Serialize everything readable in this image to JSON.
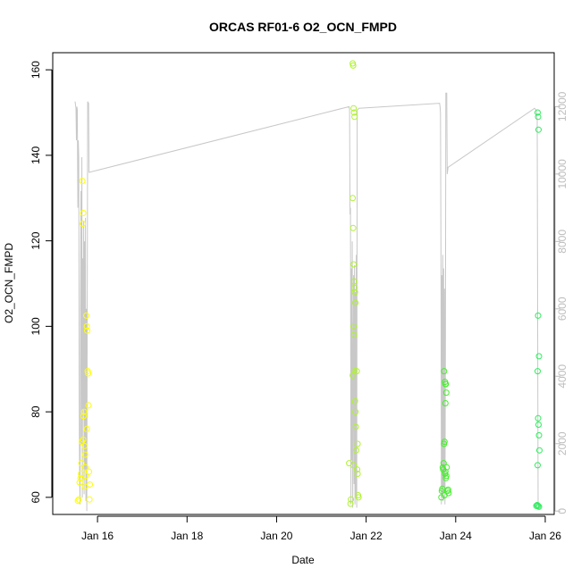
{
  "chart_data": {
    "type": "scatter",
    "title": "ORCAS RF01-6 O2_OCN_FMPD",
    "xlabel": "Date",
    "ylabel": "O2_OCN_FMPD",
    "x_ticks": [
      "Jan 16",
      "Jan 18",
      "Jan 20",
      "Jan 22",
      "Jan 24",
      "Jan 26"
    ],
    "x_tick_values": [
      16,
      18,
      20,
      22,
      24,
      26
    ],
    "xlim": [
      15.0,
      26.2
    ],
    "y_ticks": [
      60,
      80,
      100,
      120,
      140,
      160
    ],
    "ylim": [
      56,
      164
    ],
    "y2_ticks": [
      0,
      2000,
      4000,
      6000,
      8000,
      10000,
      12000
    ],
    "y2lim": [
      -100,
      13600
    ],
    "y2_color": "#bdbdbd",
    "grid": false,
    "legend": "none",
    "series": [
      {
        "color": "#ffff00",
        "points": [
          [
            15.56,
            59.2
          ],
          [
            15.58,
            59.5
          ],
          [
            15.6,
            63.5
          ],
          [
            15.62,
            64.5
          ],
          [
            15.63,
            65.5
          ],
          [
            15.64,
            68.0
          ],
          [
            15.65,
            73.0
          ],
          [
            15.66,
            134.0
          ],
          [
            15.67,
            124.0
          ],
          [
            15.68,
            126.5
          ],
          [
            15.69,
            79.0
          ],
          [
            15.7,
            80.0
          ],
          [
            15.71,
            72.0
          ],
          [
            15.72,
            70.0
          ],
          [
            15.73,
            67.0
          ],
          [
            15.74,
            65.0
          ],
          [
            15.75,
            102.5
          ],
          [
            15.76,
            100.0
          ],
          [
            15.77,
            99.0
          ],
          [
            15.78,
            89.5
          ],
          [
            15.79,
            89.0
          ],
          [
            15.8,
            81.5
          ],
          [
            15.81,
            66.0
          ],
          [
            15.82,
            59.5
          ],
          [
            15.83,
            63.0
          ],
          [
            15.76,
            76.0
          ],
          [
            15.72,
            62.5
          ],
          [
            15.68,
            73.5
          ]
        ]
      },
      {
        "color": "#b0f22e",
        "points": [
          [
            21.62,
            68.0
          ],
          [
            21.65,
            58.5
          ],
          [
            21.66,
            59.5
          ],
          [
            21.7,
            161.5
          ],
          [
            21.71,
            161.0
          ],
          [
            21.72,
            151.0
          ],
          [
            21.73,
            150.0
          ],
          [
            21.74,
            149.0
          ],
          [
            21.7,
            130.0
          ],
          [
            21.71,
            123.0
          ],
          [
            21.72,
            114.5
          ],
          [
            21.73,
            110.5
          ],
          [
            21.74,
            109.0
          ],
          [
            21.75,
            108.0
          ],
          [
            21.76,
            105.5
          ],
          [
            21.72,
            100.0
          ],
          [
            21.73,
            98.0
          ],
          [
            21.74,
            89.5
          ],
          [
            21.7,
            88.5
          ],
          [
            21.75,
            82.5
          ],
          [
            21.76,
            80.0
          ],
          [
            21.77,
            76.5
          ],
          [
            21.78,
            71.0
          ],
          [
            21.72,
            67.5
          ],
          [
            21.8,
            66.5
          ],
          [
            21.81,
            65.5
          ],
          [
            21.82,
            60.5
          ],
          [
            21.83,
            60.0
          ],
          [
            21.79,
            89.5
          ],
          [
            21.81,
            72.5
          ]
        ]
      },
      {
        "color": "#46ee2c",
        "points": [
          [
            23.68,
            60.0
          ],
          [
            23.69,
            61.5
          ],
          [
            23.7,
            62.0
          ],
          [
            23.71,
            67.0
          ],
          [
            23.72,
            66.5
          ],
          [
            23.73,
            68.0
          ],
          [
            23.74,
            72.5
          ],
          [
            23.75,
            73.0
          ],
          [
            23.76,
            65.5
          ],
          [
            23.77,
            66.0
          ],
          [
            23.78,
            64.5
          ],
          [
            23.79,
            65.0
          ],
          [
            23.74,
            89.5
          ],
          [
            23.76,
            87.0
          ],
          [
            23.77,
            86.5
          ],
          [
            23.78,
            86.5
          ],
          [
            23.79,
            84.5
          ],
          [
            23.77,
            82.0
          ],
          [
            23.8,
            67.0
          ],
          [
            23.82,
            61.5
          ],
          [
            23.84,
            61.0
          ],
          [
            23.83,
            61.8
          ],
          [
            23.75,
            60.5
          ]
        ]
      },
      {
        "color": "#2eec5c",
        "points": [
          [
            25.8,
            58.0
          ],
          [
            25.82,
            58.2
          ],
          [
            25.84,
            58.0
          ],
          [
            25.86,
            57.8
          ],
          [
            25.83,
            150.0
          ],
          [
            25.84,
            149.0
          ],
          [
            25.85,
            146.0
          ],
          [
            25.84,
            102.5
          ],
          [
            25.86,
            93.0
          ],
          [
            25.83,
            89.5
          ],
          [
            25.84,
            78.5
          ],
          [
            25.85,
            77.0
          ],
          [
            25.86,
            74.5
          ],
          [
            25.87,
            71.0
          ],
          [
            25.83,
            67.5
          ]
        ]
      }
    ],
    "altitude_series": {
      "axis": "right",
      "color": "#c8c8c8",
      "segments": [
        [
          [
            15.5,
            12150
          ],
          [
            15.52,
            11950
          ],
          [
            15.53,
            11000
          ],
          [
            15.54,
            12000
          ],
          [
            15.55,
            11900
          ],
          [
            15.56,
            9000
          ],
          [
            15.57,
            11000
          ],
          [
            15.58,
            10500
          ],
          [
            15.59,
            3500
          ],
          [
            15.6,
            900
          ],
          [
            15.61,
            200
          ],
          [
            15.62,
            6000
          ],
          [
            15.63,
            9500
          ],
          [
            15.64,
            2000
          ],
          [
            15.65,
            10500
          ],
          [
            15.66,
            400
          ],
          [
            15.67,
            7500
          ],
          [
            15.68,
            3000
          ],
          [
            15.69,
            8600
          ],
          [
            15.7,
            500
          ],
          [
            15.71,
            8000
          ],
          [
            15.72,
            1200
          ],
          [
            15.73,
            8700
          ],
          [
            15.74,
            300
          ],
          [
            15.75,
            6000
          ],
          [
            15.76,
            0
          ],
          [
            15.78,
            12150
          ],
          [
            15.8,
            12100
          ],
          [
            15.81,
            10050
          ],
          [
            21.62,
            12000
          ],
          [
            21.63,
            11900
          ],
          [
            21.64,
            8800
          ],
          [
            21.65,
            9000
          ],
          [
            21.66,
            200
          ],
          [
            21.67,
            7200
          ],
          [
            21.68,
            1500
          ],
          [
            21.69,
            8000
          ],
          [
            21.7,
            100
          ],
          [
            21.72,
            7000
          ],
          [
            21.73,
            800
          ],
          [
            21.74,
            7300
          ],
          [
            21.75,
            200
          ],
          [
            21.76,
            6500
          ],
          [
            21.77,
            400
          ],
          [
            21.78,
            7600
          ],
          [
            21.79,
            100
          ],
          [
            21.8,
            11900
          ],
          [
            21.84,
            11950
          ],
          [
            23.64,
            12100
          ],
          [
            23.65,
            12000
          ],
          [
            23.66,
            11800
          ],
          [
            23.67,
            7800
          ],
          [
            23.68,
            200
          ],
          [
            23.69,
            7000
          ],
          [
            23.7,
            500
          ],
          [
            23.71,
            7600
          ],
          [
            23.72,
            300
          ],
          [
            23.73,
            7200
          ],
          [
            23.74,
            700
          ],
          [
            23.75,
            6600
          ],
          [
            23.76,
            200
          ],
          [
            23.77,
            4500
          ],
          [
            23.78,
            12400
          ],
          [
            23.8,
            12400
          ],
          [
            23.81,
            10000
          ],
          [
            23.83,
            10200
          ],
          [
            25.76,
            11950
          ],
          [
            25.8,
            11900
          ],
          [
            25.82,
            11600
          ],
          [
            25.84,
            100
          ]
        ]
      ]
    }
  }
}
